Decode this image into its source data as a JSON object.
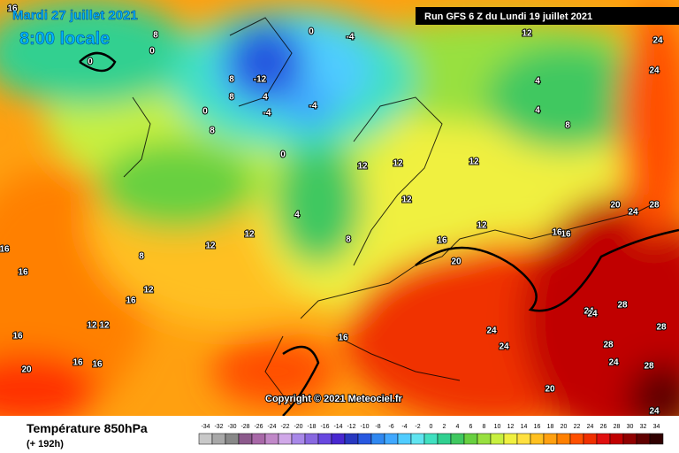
{
  "header": {
    "date": "Mardi 27 juillet 2021",
    "time": "8:00 locale",
    "run": "Run GFS 6 Z du Lundi 19 juillet 2021"
  },
  "copyright": "Copyright © 2021 Meteociel.fr",
  "footer": {
    "title": "Température 850hPa",
    "lead": "(+ 192h)"
  },
  "scale": {
    "values": [
      -34,
      -32,
      -30,
      -28,
      -26,
      -24,
      -22,
      -20,
      -18,
      -16,
      -14,
      -12,
      -10,
      -8,
      -6,
      -4,
      -2,
      0,
      2,
      4,
      6,
      8,
      10,
      12,
      14,
      16,
      18,
      20,
      22,
      24,
      26,
      28,
      30,
      32,
      34
    ],
    "colors": [
      "#c8c8c8",
      "#a8a8a8",
      "#888888",
      "#8c5a8c",
      "#a868a8",
      "#c088c8",
      "#d0a8e8",
      "#a888e8",
      "#8868e0",
      "#6848e0",
      "#4828d0",
      "#2838c0",
      "#2858e0",
      "#3088f0",
      "#40a8ff",
      "#50ccff",
      "#60e4f0",
      "#40e0c0",
      "#30d090",
      "#40c860",
      "#68d040",
      "#98e040",
      "#c8f040",
      "#f0f040",
      "#ffe040",
      "#ffc020",
      "#ffa010",
      "#ff8000",
      "#ff5000",
      "#f03000",
      "#e01010",
      "#c00000",
      "#900000",
      "#600000",
      "#300000"
    ]
  },
  "contour_labels": [
    0,
    8,
    -12,
    -4,
    -4,
    -4,
    0,
    0,
    0,
    8,
    8,
    12,
    12,
    16,
    16,
    16,
    16,
    16,
    12,
    12,
    12,
    4,
    4,
    8,
    12,
    12,
    12,
    16,
    16,
    20,
    20,
    20,
    24,
    24,
    24,
    24,
    28,
    28,
    28,
    28,
    24,
    24,
    20,
    24,
    28,
    4,
    4,
    8,
    12,
    12,
    16,
    16,
    16,
    8,
    0,
    8,
    12,
    16,
    24,
    24
  ]
}
